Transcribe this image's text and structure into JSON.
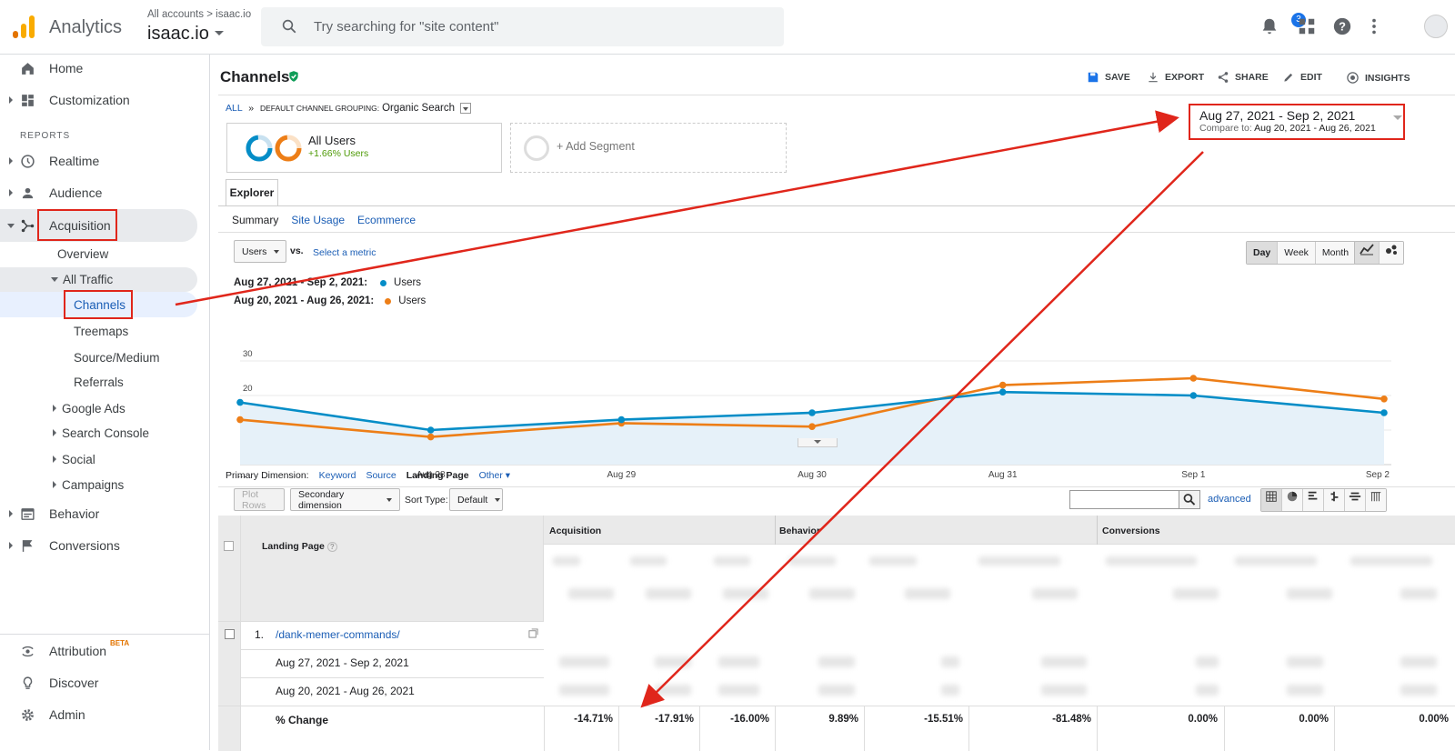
{
  "header": {
    "app_name": "Analytics",
    "breadcrumb_all": "All accounts",
    "breadcrumb_sep": ">",
    "breadcrumb_site": "isaac.io",
    "account_name": "isaac.io",
    "search_placeholder": "Try searching for \"site content\"",
    "notification_count": "3",
    "brand_colors": [
      "#f9ab00",
      "#e37400"
    ]
  },
  "sidebar": {
    "home": "Home",
    "customization": "Customization",
    "reports_heading": "REPORTS",
    "realtime": "Realtime",
    "audience": "Audience",
    "acquisition": "Acquisition",
    "overview": "Overview",
    "all_traffic": "All Traffic",
    "channels": "Channels",
    "treemaps": "Treemaps",
    "source_medium": "Source/Medium",
    "referrals": "Referrals",
    "google_ads": "Google Ads",
    "search_console": "Search Console",
    "social": "Social",
    "campaigns": "Campaigns",
    "behavior": "Behavior",
    "conversions": "Conversions",
    "attribution": "Attribution",
    "beta": "BETA",
    "discover": "Discover",
    "admin": "Admin"
  },
  "page": {
    "title": "Channels",
    "toolbar": {
      "save": "SAVE",
      "export": "EXPORT",
      "share": "SHARE",
      "edit": "EDIT",
      "insights": "INSIGHTS"
    },
    "crumb_all": "ALL",
    "crumb_sep": "»",
    "grouping_label": "DEFAULT CHANNEL GROUPING:",
    "grouping_value": "Organic Search",
    "segment_name": "All Users",
    "segment_change": "+1.66% Users",
    "add_segment": "+ Add Segment",
    "date_main": "Aug 27, 2021 - Sep 2, 2021",
    "compare_label": "Compare to:",
    "compare_range": "Aug 20, 2021 - Aug 26, 2021",
    "tab_explorer": "Explorer",
    "subtabs": [
      "Summary",
      "Site Usage",
      "Ecommerce"
    ],
    "metric_select": "Users",
    "vs": "vs.",
    "select_metric": "Select a metric",
    "periods": [
      "Day",
      "Week",
      "Month"
    ],
    "legend1_label": "Aug 27, 2021 - Sep 2, 2021:",
    "legend2_label": "Aug 20, 2021 - Aug 26, 2021:",
    "legend_metric": "Users",
    "primary_dimension_label": "Primary Dimension:",
    "dims": [
      "Keyword",
      "Source",
      "Landing Page",
      "Other"
    ],
    "plot_rows": "Plot Rows",
    "secondary_dimension": "Secondary dimension",
    "sort_type_label": "Sort Type:",
    "sort_type": "Default",
    "advanced": "advanced",
    "col_landing": "Landing Page",
    "grp_acq": "Acquisition",
    "grp_beh": "Behavior",
    "grp_conv": "Conversions",
    "row_num": "1.",
    "row_page": "/dank-memer-commands/",
    "row_range1": "Aug 27, 2021 - Sep 2, 2021",
    "row_range2": "Aug 20, 2021 - Aug 26, 2021",
    "pct_change_label": "% Change",
    "pct_values": [
      "-14.71%",
      "-17.91%",
      "-16.00%",
      "9.89%",
      "-15.51%",
      "-81.48%",
      "0.00%",
      "0.00%",
      "0.00%"
    ]
  },
  "chart_data": {
    "type": "line",
    "x": [
      "…",
      "Aug 28",
      "Aug 29",
      "Aug 30",
      "Aug 31",
      "Sep 1",
      "Sep 2"
    ],
    "ylim": [
      0,
      30
    ],
    "yticks": [
      "30",
      "20",
      "10"
    ],
    "series": [
      {
        "name": "Users",
        "color": "#058dc7",
        "values": [
          18,
          10,
          13,
          15,
          21,
          20,
          15
        ]
      },
      {
        "name": "Users",
        "color": "#ed7e17",
        "values": [
          13,
          8,
          12,
          11,
          23,
          25,
          19
        ]
      }
    ]
  }
}
